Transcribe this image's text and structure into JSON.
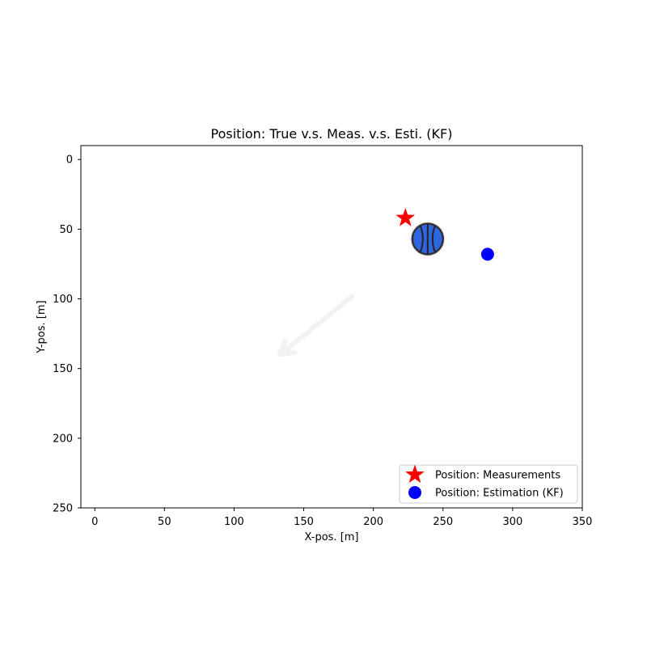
{
  "chart_data": {
    "type": "scatter",
    "title": "Position: True v.s. Meas. v.s. Esti. (KF)",
    "xlabel": "X-pos. [m]",
    "ylabel": "Y-pos. [m]",
    "xlim": [
      -10,
      350
    ],
    "ylim": [
      250,
      -10
    ],
    "y_inverted": true,
    "xticks": [
      0,
      50,
      100,
      150,
      200,
      250,
      300,
      350
    ],
    "yticks": [
      0,
      50,
      100,
      150,
      200,
      250
    ],
    "xtick_labels": [
      "0",
      "50",
      "100",
      "150",
      "200",
      "250",
      "300",
      "350"
    ],
    "ytick_labels": [
      "0",
      "50",
      "100",
      "150",
      "200",
      "250"
    ],
    "grid": false,
    "legend_position": "bottom-right",
    "series": [
      {
        "name": "Position: Measurements",
        "marker": "star",
        "color": "#ff0000",
        "points": [
          {
            "x": 223,
            "y": 42
          }
        ]
      },
      {
        "name": "Position: Estimation (KF)",
        "marker": "circle",
        "color": "#0000ff",
        "points": [
          {
            "x": 282,
            "y": 68
          }
        ]
      }
    ],
    "annotations": [
      {
        "kind": "basketball-image",
        "icon": "basketball-icon",
        "color": "#2f66e0",
        "x": 239,
        "y": 57
      },
      {
        "kind": "faint-arrow",
        "color": "#f2f2f2",
        "from": {
          "x": 185,
          "y": 98
        },
        "to": {
          "x": 133,
          "y": 140
        }
      }
    ]
  }
}
